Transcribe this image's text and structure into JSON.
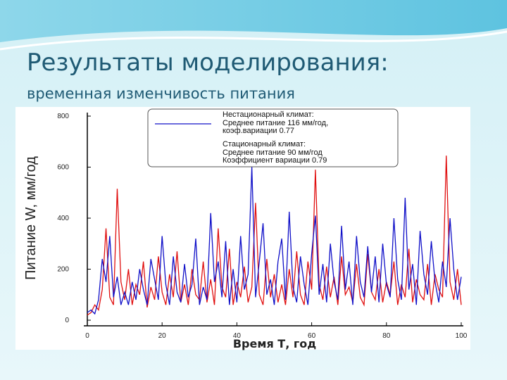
{
  "slide": {
    "title": "Результаты моделирования:",
    "subtitle": "временная изменчивость питания"
  },
  "chart_data": {
    "type": "line",
    "x_label": "Время Т, год",
    "y_label": "Питание W, мм/год",
    "xlim": [
      0,
      100
    ],
    "xticks": [
      0,
      20,
      40,
      60,
      80,
      100
    ],
    "ylim": [
      0,
      800
    ],
    "yticks": [
      0,
      200,
      400,
      600,
      800
    ],
    "x": [
      0,
      1,
      2,
      3,
      4,
      5,
      6,
      7,
      8,
      9,
      10,
      11,
      12,
      13,
      14,
      15,
      16,
      17,
      18,
      19,
      20,
      21,
      22,
      23,
      24,
      25,
      26,
      27,
      28,
      29,
      30,
      31,
      32,
      33,
      34,
      35,
      36,
      37,
      38,
      39,
      40,
      41,
      42,
      43,
      44,
      45,
      46,
      47,
      48,
      49,
      50,
      51,
      52,
      53,
      54,
      55,
      56,
      57,
      58,
      59,
      60,
      61,
      62,
      63,
      64,
      65,
      66,
      67,
      68,
      69,
      70,
      71,
      72,
      73,
      74,
      75,
      76,
      77,
      78,
      79,
      80,
      81,
      82,
      83,
      84,
      85,
      86,
      87,
      88,
      89,
      90,
      91,
      92,
      93,
      94,
      95,
      96,
      97,
      98,
      99,
      100
    ],
    "series": [
      {
        "name": "Нестационарный климат:",
        "description": [
          "Среднее питание 116 мм/год,",
          "коэф.вариации 0.77"
        ],
        "color": "#1010c8",
        "values": [
          30,
          40,
          25,
          80,
          240,
          150,
          330,
          90,
          170,
          60,
          110,
          60,
          150,
          80,
          200,
          120,
          60,
          240,
          160,
          80,
          330,
          140,
          60,
          250,
          110,
          70,
          220,
          90,
          140,
          320,
          60,
          130,
          80,
          420,
          150,
          230,
          90,
          310,
          60,
          200,
          70,
          330,
          120,
          180,
          600,
          90,
          230,
          380,
          100,
          160,
          60,
          230,
          320,
          80,
          425,
          130,
          70,
          250,
          140,
          60,
          260,
          410,
          100,
          220,
          70,
          300,
          150,
          80,
          370,
          120,
          230,
          60,
          330,
          150,
          90,
          290,
          110,
          250,
          70,
          300,
          140,
          90,
          400,
          160,
          80,
          480,
          120,
          220,
          60,
          350,
          180,
          100,
          310,
          150,
          70,
          230,
          130,
          400,
          200,
          80,
          170
        ]
      },
      {
        "name": "Стационарный климат:",
        "description": [
          "Среднее питание 90 мм/год",
          "Коэффициент вариации 0.79"
        ],
        "color": "#e01010",
        "values": [
          20,
          30,
          60,
          40,
          120,
          360,
          90,
          60,
          515,
          150,
          80,
          200,
          60,
          140,
          100,
          230,
          50,
          130,
          80,
          250,
          110,
          60,
          180,
          90,
          270,
          70,
          140,
          60,
          200,
          100,
          80,
          230,
          70,
          160,
          60,
          360,
          130,
          90,
          280,
          60,
          150,
          90,
          210,
          70,
          130,
          460,
          100,
          60,
          240,
          90,
          180,
          70,
          140,
          60,
          200,
          90,
          270,
          100,
          60,
          230,
          120,
          590,
          140,
          80,
          210,
          90,
          170,
          60,
          250,
          100,
          130,
          70,
          220,
          90,
          60,
          260,
          110,
          80,
          200,
          70,
          150,
          100,
          230,
          60,
          140,
          90,
          280,
          70,
          160,
          100,
          80,
          220,
          60,
          180,
          120,
          90,
          645,
          150,
          80,
          200,
          60
        ]
      }
    ]
  }
}
